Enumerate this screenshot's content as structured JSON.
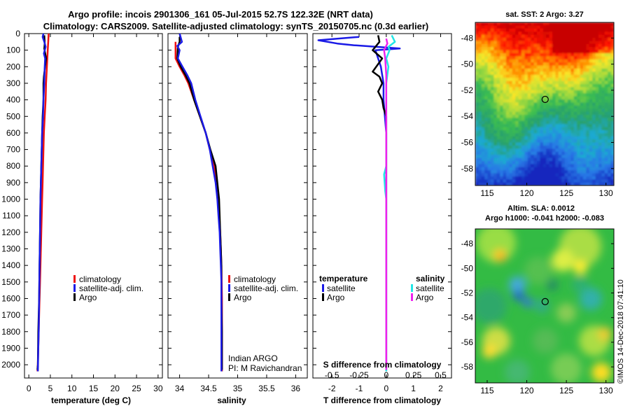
{
  "title_line1": "Argo profile: incois 2901306_161 05-Jul-2015 52.7S 122.32E (NRT data)",
  "title_line2": "Climatology: CARS2009. Satellite-adjusted climatology: synTS_20150705.nc (0.3d earlier)",
  "credit": "©IMOS 14-Dec-2018 07:41:10",
  "colors": {
    "climatology": "#ee1111",
    "satellite_adj": "#1a1ae6",
    "argo": "#000000",
    "sal_satellite": "#22e6e6",
    "sal_argo": "#ee22ee"
  },
  "chart_data": [
    {
      "id": "temperature",
      "type": "line",
      "xlabel": "temperature (deg C)",
      "ylabel": "",
      "xlim": [
        -1,
        31
      ],
      "ylim": [
        2080,
        0
      ],
      "xticks": [
        0,
        5,
        10,
        15,
        20,
        25,
        30
      ],
      "yticks": [
        0,
        100,
        200,
        300,
        400,
        500,
        600,
        700,
        800,
        900,
        1000,
        1100,
        1200,
        1300,
        1400,
        1500,
        1600,
        1700,
        1800,
        1900,
        2000
      ],
      "legend": [
        "climatology",
        "satellite-adj. clim.",
        "Argo"
      ],
      "series": [
        {
          "name": "climatology",
          "color_key": "climatology",
          "points": [
            [
              4.6,
              0
            ],
            [
              4.5,
              50
            ],
            [
              4.4,
              100
            ],
            [
              4.2,
              200
            ],
            [
              4.0,
              300
            ],
            [
              3.9,
              400
            ],
            [
              3.7,
              500
            ],
            [
              3.5,
              600
            ],
            [
              3.4,
              700
            ],
            [
              3.3,
              800
            ],
            [
              3.2,
              900
            ],
            [
              3.1,
              1000
            ],
            [
              3.0,
              1100
            ],
            [
              2.9,
              1200
            ],
            [
              2.8,
              1300
            ],
            [
              2.7,
              1400
            ],
            [
              2.6,
              1500
            ],
            [
              2.5,
              1600
            ],
            [
              2.4,
              1700
            ],
            [
              2.3,
              1800
            ],
            [
              2.2,
              1900
            ],
            [
              2.1,
              2000
            ],
            [
              2.0,
              2040
            ]
          ]
        },
        {
          "name": "Argo",
          "color_key": "argo",
          "points": [
            [
              3.6,
              10
            ],
            [
              3.7,
              60
            ],
            [
              3.6,
              90
            ],
            [
              4.0,
              150
            ],
            [
              3.5,
              260
            ],
            [
              3.4,
              300
            ],
            [
              3.4,
              400
            ],
            [
              3.2,
              500
            ],
            [
              3.1,
              600
            ],
            [
              3.0,
              700
            ],
            [
              2.9,
              800
            ],
            [
              2.8,
              900
            ],
            [
              2.7,
              1000
            ],
            [
              2.6,
              1200
            ],
            [
              2.5,
              1400
            ],
            [
              2.4,
              1600
            ],
            [
              2.2,
              1800
            ],
            [
              2.1,
              2000
            ],
            [
              2.0,
              2030
            ]
          ]
        },
        {
          "name": "satellite-adj. clim.",
          "color_key": "satellite_adj",
          "points": [
            [
              3.4,
              0
            ],
            [
              3.2,
              20
            ],
            [
              3.6,
              50
            ],
            [
              3.9,
              80
            ],
            [
              3.5,
              120
            ],
            [
              3.8,
              150
            ],
            [
              3.7,
              200
            ],
            [
              3.6,
              300
            ],
            [
              3.4,
              400
            ],
            [
              3.3,
              500
            ],
            [
              3.1,
              600
            ],
            [
              3.0,
              700
            ],
            [
              2.9,
              800
            ],
            [
              2.8,
              900
            ],
            [
              2.7,
              1000
            ],
            [
              2.6,
              1200
            ],
            [
              2.5,
              1400
            ],
            [
              2.4,
              1600
            ],
            [
              2.3,
              1800
            ],
            [
              2.2,
              1900
            ],
            [
              2.1,
              2040
            ]
          ]
        }
      ]
    },
    {
      "id": "salinity",
      "type": "line",
      "xlabel": "salinity",
      "xlim": [
        33.8,
        36.2
      ],
      "ylim": [
        2080,
        0
      ],
      "xticks": [
        34,
        34.5,
        35,
        35.5,
        36
      ],
      "xtick_labels": [
        "34",
        "34.5",
        "35",
        "35.5",
        "36"
      ],
      "legend": [
        "climatology",
        "satellite-adj. clim.",
        "Argo"
      ],
      "annotation": [
        "Indian ARGO",
        "PI: M Ravichandran"
      ],
      "series": [
        {
          "name": "climatology",
          "color_key": "climatology",
          "points": [
            [
              33.93,
              50
            ],
            [
              33.93,
              150
            ],
            [
              34.0,
              200
            ],
            [
              34.08,
              250
            ],
            [
              34.15,
              300
            ],
            [
              34.25,
              400
            ],
            [
              34.35,
              500
            ],
            [
              34.45,
              600
            ],
            [
              34.52,
              700
            ],
            [
              34.6,
              800
            ],
            [
              34.63,
              900
            ],
            [
              34.66,
              1000
            ],
            [
              34.68,
              1100
            ],
            [
              34.7,
              1200
            ],
            [
              34.71,
              1300
            ],
            [
              34.72,
              1400
            ],
            [
              34.73,
              1600
            ],
            [
              34.73,
              1800
            ],
            [
              34.73,
              2000
            ],
            [
              34.73,
              2040
            ]
          ]
        },
        {
          "name": "Argo",
          "color_key": "argo",
          "points": [
            [
              34.0,
              20
            ],
            [
              34.0,
              50
            ],
            [
              33.97,
              80
            ],
            [
              33.96,
              150
            ],
            [
              34.02,
              200
            ],
            [
              34.1,
              250
            ],
            [
              34.17,
              300
            ],
            [
              34.25,
              400
            ],
            [
              34.35,
              500
            ],
            [
              34.45,
              600
            ],
            [
              34.53,
              700
            ],
            [
              34.62,
              800
            ],
            [
              34.65,
              900
            ],
            [
              34.68,
              1000
            ],
            [
              34.69,
              1100
            ],
            [
              34.7,
              1200
            ],
            [
              34.71,
              1300
            ],
            [
              34.72,
              1400
            ],
            [
              34.72,
              1600
            ],
            [
              34.73,
              1800
            ],
            [
              34.73,
              2000
            ],
            [
              34.73,
              2030
            ]
          ]
        },
        {
          "name": "satellite-adj. clim.",
          "color_key": "satellite_adj",
          "points": [
            [
              34.0,
              0
            ],
            [
              34.04,
              50
            ],
            [
              33.96,
              75
            ],
            [
              34.0,
              100
            ],
            [
              33.97,
              150
            ],
            [
              34.05,
              200
            ],
            [
              34.13,
              250
            ],
            [
              34.2,
              300
            ],
            [
              34.27,
              400
            ],
            [
              34.36,
              500
            ],
            [
              34.45,
              600
            ],
            [
              34.52,
              700
            ],
            [
              34.57,
              800
            ],
            [
              34.62,
              900
            ],
            [
              34.65,
              1000
            ],
            [
              34.67,
              1100
            ],
            [
              34.69,
              1200
            ],
            [
              34.7,
              1300
            ],
            [
              34.71,
              1400
            ],
            [
              34.72,
              1500
            ],
            [
              34.72,
              1700
            ],
            [
              34.72,
              1900
            ],
            [
              34.72,
              2040
            ]
          ]
        }
      ]
    },
    {
      "id": "difference",
      "type": "line",
      "xlabel": "T difference from climatology",
      "xlabel_top": "S difference from climatology",
      "xlim": [
        -2.7,
        2.4
      ],
      "ylim": [
        2080,
        0
      ],
      "xticks": [
        -2,
        -1,
        0,
        1,
        2
      ],
      "top_xticks": [
        -0.5,
        -0.25,
        0,
        0.25,
        0.5
      ],
      "top_xtick_labels": [
        "-0.5",
        "-0.25",
        "0",
        "0.25",
        "0.5"
      ],
      "legend_temperature": {
        "title": "temperature",
        "items": [
          "satellite",
          "Argo"
        ]
      },
      "legend_salinity": {
        "title": "salinity",
        "items": [
          "satellite",
          "Argo"
        ]
      },
      "series": [
        {
          "name": "temperature satellite",
          "color_key": "satellite_adj",
          "axis": "T",
          "points": [
            [
              -1.0,
              20
            ],
            [
              -2.5,
              40
            ],
            [
              -1.8,
              60
            ],
            [
              -1.2,
              70
            ],
            [
              0.5,
              90
            ],
            [
              -0.4,
              100
            ],
            [
              -0.3,
              150
            ],
            [
              -0.2,
              200
            ],
            [
              -0.1,
              300
            ],
            [
              -0.1,
              400
            ],
            [
              0.0,
              600
            ],
            [
              0.0,
              800
            ],
            [
              0.0,
              1000
            ],
            [
              0.0,
              1200
            ],
            [
              0.0,
              1400
            ],
            [
              0.0,
              1600
            ],
            [
              0.0,
              1800
            ],
            [
              0.0,
              2000
            ],
            [
              0.0,
              2040
            ]
          ]
        },
        {
          "name": "temperature Argo",
          "color_key": "argo",
          "axis": "T",
          "points": [
            [
              -0.3,
              10
            ],
            [
              -0.25,
              50
            ],
            [
              -0.5,
              100
            ],
            [
              -0.15,
              150
            ],
            [
              -0.5,
              230
            ],
            [
              -0.25,
              260
            ],
            [
              -0.15,
              300
            ],
            [
              -0.3,
              350
            ],
            [
              -0.15,
              400
            ],
            [
              -0.1,
              450
            ],
            [
              0.0,
              500
            ],
            [
              0.0,
              700
            ],
            [
              0.0,
              900
            ],
            [
              0.0,
              1100
            ],
            [
              0.0,
              1300
            ],
            [
              0.0,
              1600
            ],
            [
              0.0,
              1900
            ],
            [
              0.0,
              2030
            ]
          ]
        },
        {
          "name": "salinity satellite",
          "color_key": "sal_satellite",
          "axis": "S",
          "points": [
            [
              0.05,
              10
            ],
            [
              0.08,
              50
            ],
            [
              0.02,
              80
            ],
            [
              0.03,
              100
            ],
            [
              0.0,
              150
            ],
            [
              0.02,
              200
            ],
            [
              0.0,
              300
            ],
            [
              0.0,
              400
            ],
            [
              0.0,
              500
            ],
            [
              0.0,
              600
            ],
            [
              0.0,
              700
            ],
            [
              0.0,
              800
            ],
            [
              -0.02,
              850
            ],
            [
              -0.01,
              950
            ],
            [
              0.0,
              1000
            ],
            [
              0.0,
              1200
            ],
            [
              0.0,
              1400
            ],
            [
              0.0,
              1600
            ],
            [
              0.0,
              1800
            ],
            [
              0.0,
              2040
            ]
          ]
        },
        {
          "name": "salinity Argo",
          "color_key": "sal_argo",
          "axis": "S",
          "points": [
            [
              0.0,
              30
            ],
            [
              0.01,
              60
            ],
            [
              -0.02,
              100
            ],
            [
              -0.01,
              150
            ],
            [
              0.0,
              250
            ],
            [
              0.0,
              350
            ],
            [
              0.0,
              500
            ],
            [
              0.0,
              700
            ],
            [
              0.0,
              900
            ],
            [
              0.0,
              1200
            ],
            [
              0.0,
              1500
            ],
            [
              0.0,
              1800
            ],
            [
              0.0,
              2030
            ]
          ]
        }
      ]
    },
    {
      "id": "sst_map",
      "type": "heatmap",
      "title": "sat. SST: 2 Argo: 3.27",
      "xticks": [
        115,
        120,
        125,
        130
      ],
      "yticks": [
        -48,
        -50,
        -52,
        -54,
        -56,
        -58
      ],
      "xlim": [
        113.5,
        131
      ],
      "ylim": [
        -59.3,
        -46.8
      ],
      "argo_position": [
        122.32,
        -52.7
      ]
    },
    {
      "id": "sla_map",
      "type": "heatmap",
      "title": "Altim. SLA: 0.0012",
      "subtitle": "Argo h1000: -0.041 h2000: -0.083",
      "xticks": [
        115,
        120,
        125,
        130
      ],
      "yticks": [
        -48,
        -50,
        -52,
        -54,
        -56,
        -58
      ],
      "xlim": [
        113.5,
        131
      ],
      "ylim": [
        -59.3,
        -46.8
      ],
      "argo_position": [
        122.32,
        -52.7
      ]
    }
  ]
}
